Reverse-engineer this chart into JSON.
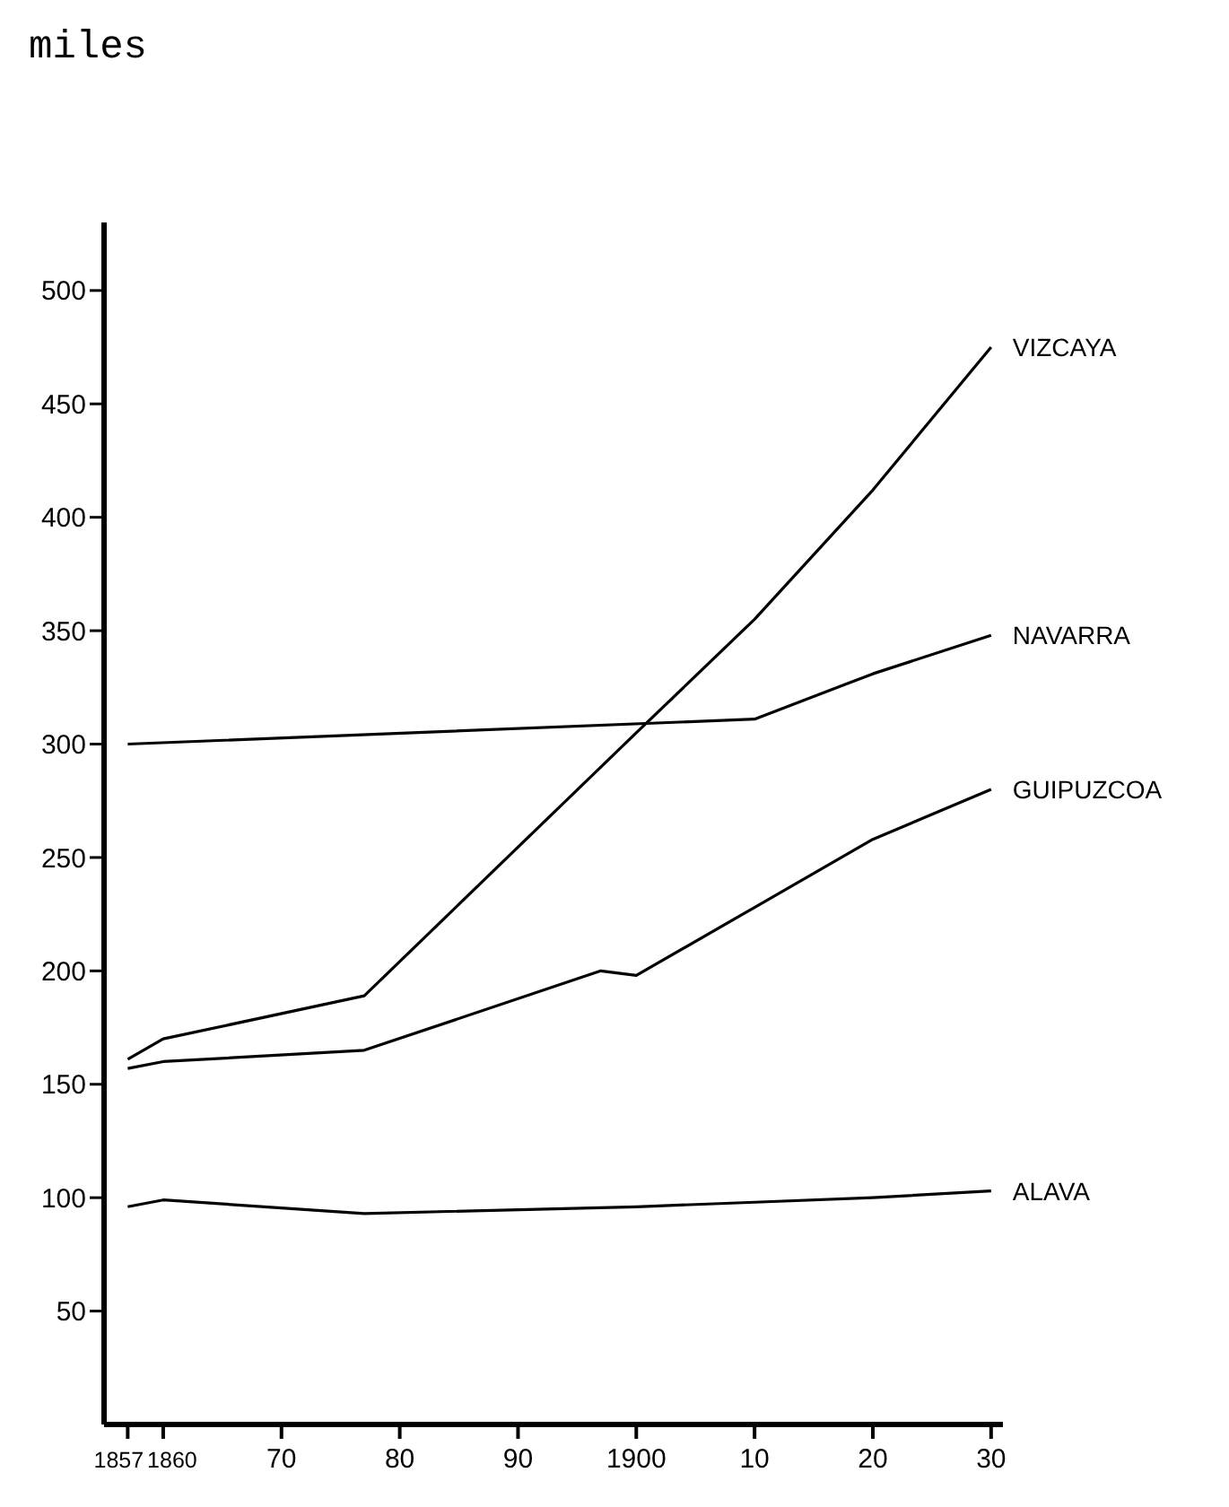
{
  "chart_data": {
    "type": "line",
    "ylabel": "miles",
    "xlim": [
      1855,
      1931
    ],
    "ylim": [
      0,
      530
    ],
    "xticks": [
      1857,
      1860,
      {
        "value": 1870,
        "label": "70"
      },
      {
        "value": 1880,
        "label": "80"
      },
      {
        "value": 1890,
        "label": "90"
      },
      1900,
      {
        "value": 1910,
        "label": "10"
      },
      {
        "value": 1920,
        "label": "20"
      },
      {
        "value": 1930,
        "label": "30"
      }
    ],
    "yticks": [
      50,
      100,
      150,
      200,
      250,
      300,
      350,
      400,
      450,
      500
    ],
    "grid": false,
    "legend": false,
    "marker": "none",
    "line_style": "solid",
    "series": [
      {
        "name": "VIZCAYA",
        "color": "#000000",
        "x": [
          1857,
          1860,
          1877,
          1900,
          1910,
          1920,
          1930
        ],
        "values": [
          161,
          170,
          189,
          305,
          355,
          412,
          475
        ]
      },
      {
        "name": "NAVARRA",
        "color": "#000000",
        "x": [
          1857,
          1910,
          1920,
          1930
        ],
        "values": [
          300,
          311,
          331,
          348
        ]
      },
      {
        "name": "GUIPUZCOA",
        "color": "#000000",
        "x": [
          1857,
          1860,
          1877,
          1897,
          1900,
          1910,
          1920,
          1930
        ],
        "values": [
          157,
          160,
          165,
          200,
          198,
          228,
          258,
          280
        ]
      },
      {
        "name": "ALAVA",
        "color": "#000000",
        "x": [
          1857,
          1860,
          1877,
          1900,
          1910,
          1920,
          1930
        ],
        "values": [
          96,
          99,
          93,
          96,
          98,
          100,
          103
        ]
      }
    ]
  }
}
